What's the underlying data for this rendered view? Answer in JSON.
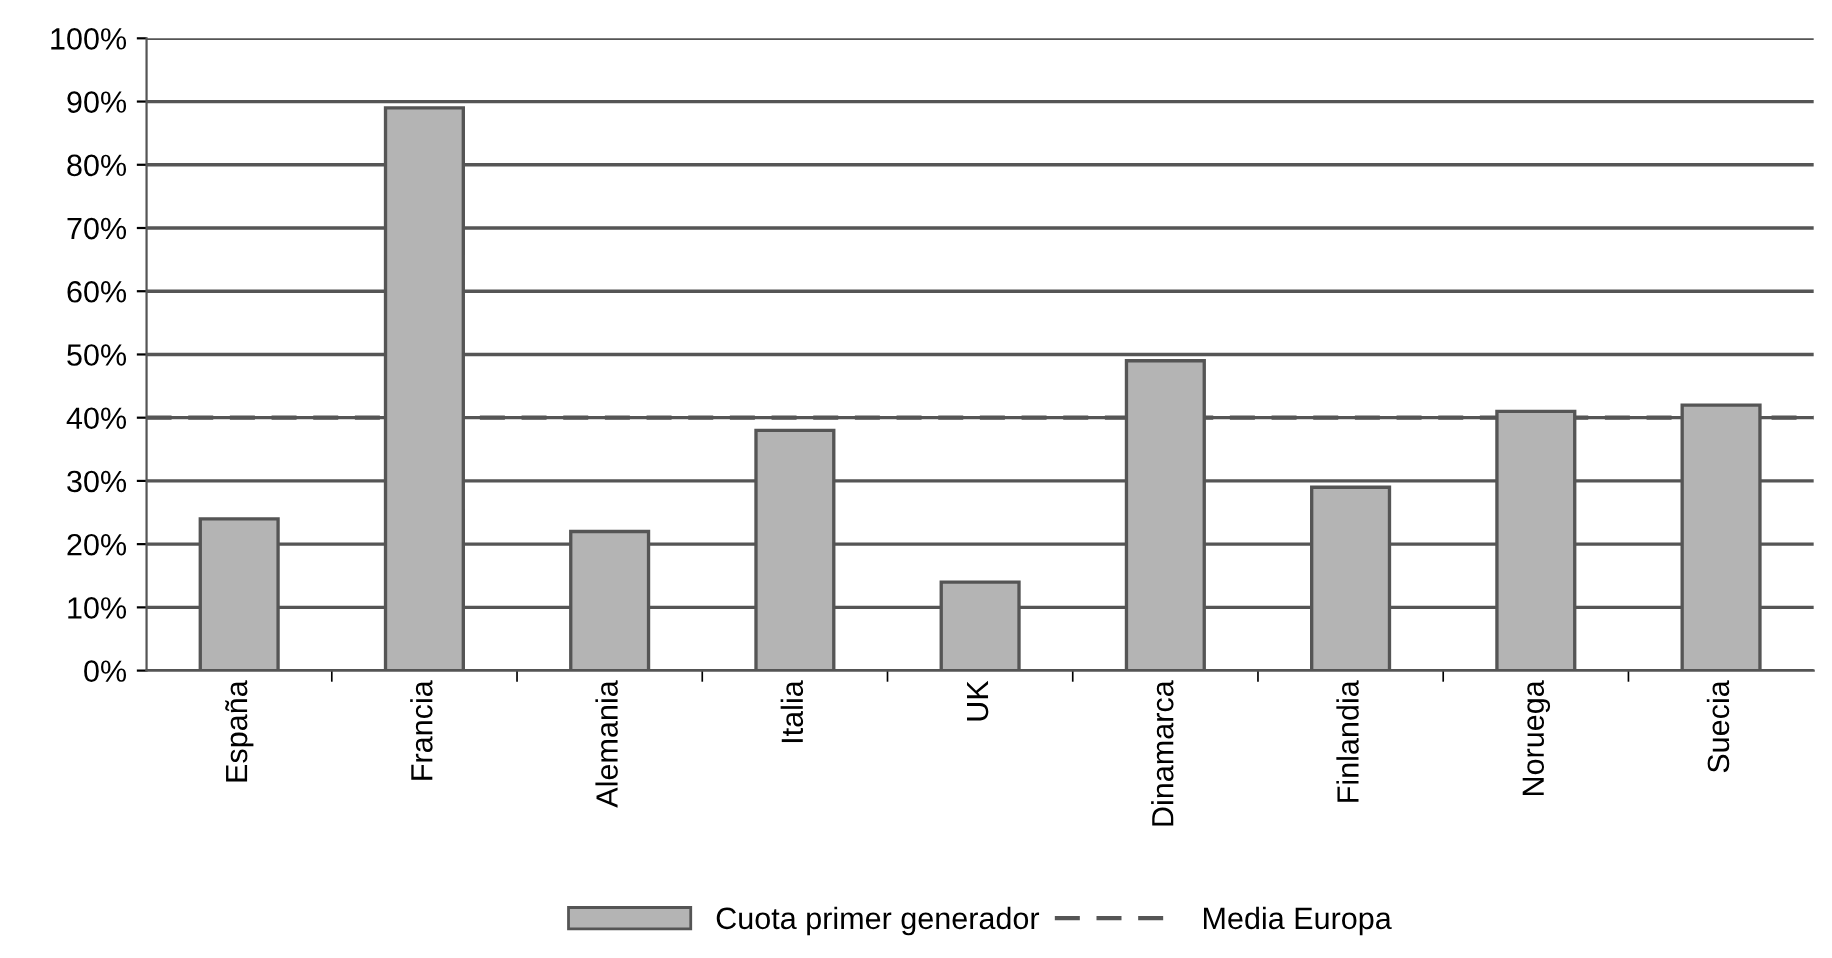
{
  "chart_data": {
    "type": "bar",
    "categories": [
      "España",
      "Francia",
      "Alemania",
      "Italia",
      "UK",
      "Dinamarca",
      "Finlandia",
      "Noruega",
      "Suecia"
    ],
    "series": [
      {
        "name": "Cuota primer generador",
        "color": "#b4b4b4",
        "values": [
          24,
          89,
          22,
          38,
          14,
          49,
          29,
          41,
          42
        ]
      }
    ],
    "ref_lines": [
      {
        "axis": "y",
        "value": 40,
        "label": "Media Europa",
        "color": "#555555",
        "line_style": "dashed"
      }
    ],
    "ylim": [
      0,
      100
    ],
    "yticks": [
      {
        "value": 0,
        "label": "0%"
      },
      {
        "value": 10,
        "label": "10%"
      },
      {
        "value": 20,
        "label": "20%"
      },
      {
        "value": 30,
        "label": "30%"
      },
      {
        "value": 40,
        "label": "40%"
      },
      {
        "value": 50,
        "label": "50%"
      },
      {
        "value": 60,
        "label": "60%"
      },
      {
        "value": 70,
        "label": "70%"
      },
      {
        "value": 80,
        "label": "80%"
      },
      {
        "value": 90,
        "label": "90%"
      },
      {
        "value": 100,
        "label": "100%"
      }
    ],
    "grid": "y",
    "legend": "bottom"
  }
}
